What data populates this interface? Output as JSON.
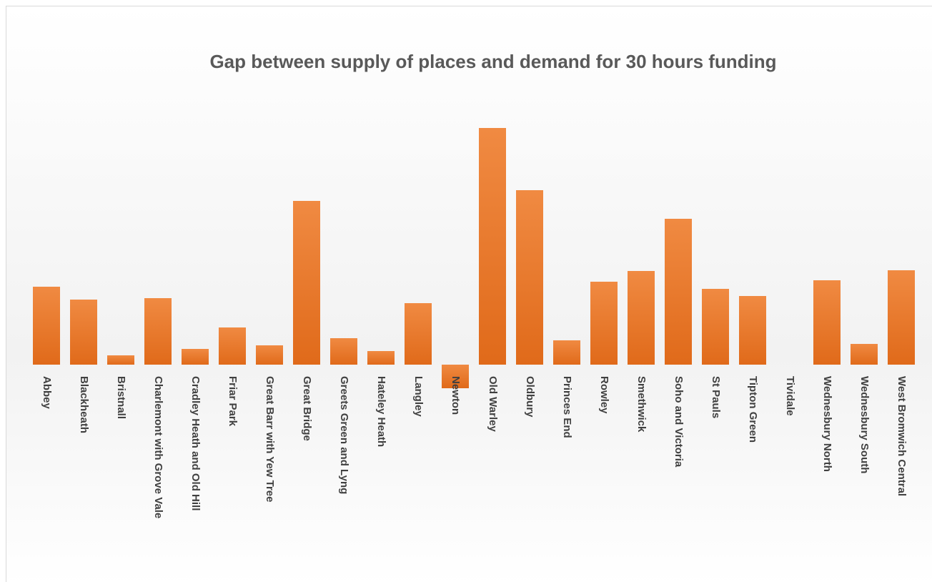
{
  "chart_data": {
    "type": "bar",
    "title": "Gap between supply of places and demand for 30 hours funding",
    "categories": [
      "Abbey",
      "Blackheath",
      "Bristnall",
      "Charlemont with Grove Vale",
      "Cradley Heath and Old Hill",
      "Friar Park",
      "Great Barr with Yew Tree",
      "Great Bridge",
      "Greets Green and Lyng",
      "Hateley Heath",
      "Langley",
      "Newton",
      "Old Warley",
      "Oldbury",
      "Princes End",
      "Rowley",
      "Smethwick",
      "Soho and Victoria",
      "St Pauls",
      "Tipton Green",
      "Tividale",
      "Wednesbury North",
      "Wednesbury South",
      "West Bromwich Central"
    ],
    "values": [
      109,
      91,
      13,
      93,
      22,
      52,
      27,
      229,
      37,
      19,
      86,
      -33,
      331,
      244,
      34,
      116,
      131,
      204,
      106,
      96,
      0,
      118,
      29,
      132
    ],
    "color": "#ed7d31",
    "ylim": [
      -50,
      350
    ]
  }
}
